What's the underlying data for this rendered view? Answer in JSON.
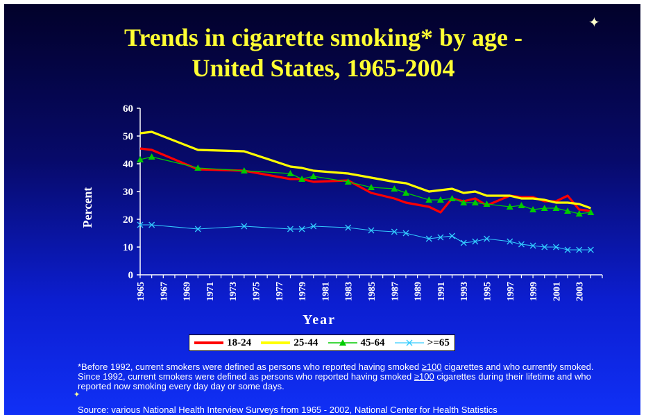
{
  "slide": {
    "title_line1": "Trends in cigarette smoking* by age -",
    "title_line2": "United States, 1965-2004",
    "footnote_part1": "*Before 1992, current smokers were defined as persons who reported having smoked ",
    "footnote_ge100_a": "≥100",
    "footnote_part2": " cigarettes and who currently smoked. Since 1992, current smokers were defined as persons who reported having smoked ",
    "footnote_ge100_b": "≥100",
    "footnote_part3": " cigarettes during their lifetime and who reported now smoking every day day or some days.",
    "source": "Source: various National Health Interview Surveys from 1965 - 2002, National Center for Health Statistics"
  },
  "colors": {
    "series_18_24": "#ff0000",
    "series_25_44": "#ffff00",
    "series_45_64": "#00cc00",
    "series_ge65": "#33ccff",
    "title": "#ffff33"
  },
  "chart_data": {
    "type": "line",
    "xlabel": "Year",
    "ylabel": "Percent",
    "ylim": [
      0,
      60
    ],
    "yticks": [
      "0",
      "10",
      "20",
      "30",
      "40",
      "50",
      "60"
    ],
    "xticks": [
      "1965",
      "1967",
      "1969",
      "1971",
      "1973",
      "1975",
      "1977",
      "1979",
      "1981",
      "1983",
      "1985",
      "1987",
      "1989",
      "1991",
      "1993",
      "1995",
      "1997",
      "1999",
      "2001",
      "2003"
    ],
    "xlim": [
      1965,
      2005
    ],
    "legend_position": "bottom",
    "series": [
      {
        "name": "18-24",
        "marker": "none",
        "color": "#ff0000",
        "x": [
          1965,
          1966,
          1970,
          1974,
          1978,
          1979,
          1980,
          1983,
          1985,
          1987,
          1988,
          1990,
          1991,
          1992,
          1993,
          1994,
          1995,
          1997,
          1998,
          1999,
          2000,
          2001,
          2002,
          2003,
          2004
        ],
        "y": [
          45.5,
          45,
          38,
          37.5,
          34.5,
          34.5,
          33.5,
          34,
          29.5,
          27.5,
          26,
          24.5,
          22.5,
          27.5,
          26.5,
          27.5,
          25,
          28.5,
          28,
          28,
          26.5,
          26.5,
          28.5,
          23.5,
          23
        ]
      },
      {
        "name": "25-44",
        "marker": "none",
        "color": "#ffff00",
        "x": [
          1965,
          1966,
          1970,
          1974,
          1978,
          1979,
          1980,
          1983,
          1985,
          1987,
          1988,
          1990,
          1991,
          1992,
          1993,
          1994,
          1995,
          1997,
          1998,
          1999,
          2000,
          2001,
          2002,
          2003,
          2004
        ],
        "y": [
          51,
          51.5,
          45,
          44.5,
          39,
          38.5,
          37.5,
          36.5,
          35,
          33.5,
          33,
          30,
          30.5,
          31,
          29.5,
          30,
          28.5,
          28.5,
          27.5,
          27.5,
          27,
          26,
          26,
          25.5,
          24
        ]
      },
      {
        "name": "45-64",
        "marker": "triangle",
        "color": "#00cc00",
        "x": [
          1965,
          1966,
          1970,
          1974,
          1978,
          1979,
          1980,
          1983,
          1985,
          1987,
          1988,
          1990,
          1991,
          1992,
          1993,
          1994,
          1995,
          1997,
          1998,
          1999,
          2000,
          2001,
          2002,
          2003,
          2004
        ],
        "y": [
          41.5,
          42.5,
          38.5,
          37.5,
          36.5,
          34.5,
          35.5,
          33.5,
          31.5,
          31,
          29.5,
          27,
          27,
          27.5,
          26,
          26,
          25.5,
          24.5,
          25,
          23.5,
          24,
          24,
          23,
          22,
          22.5
        ]
      },
      {
        "name": ">=65",
        "marker": "x",
        "color": "#33ccff",
        "x": [
          1965,
          1966,
          1970,
          1974,
          1978,
          1979,
          1980,
          1983,
          1985,
          1987,
          1988,
          1990,
          1991,
          1992,
          1993,
          1994,
          1995,
          1997,
          1998,
          1999,
          2000,
          2001,
          2002,
          2003,
          2004
        ],
        "y": [
          18,
          18,
          16.5,
          17.5,
          16.5,
          16.5,
          17.5,
          17,
          16,
          15.5,
          15,
          13,
          13.5,
          14,
          11.5,
          12,
          13,
          12,
          11,
          10.5,
          10,
          10,
          9,
          9,
          9
        ]
      }
    ]
  }
}
